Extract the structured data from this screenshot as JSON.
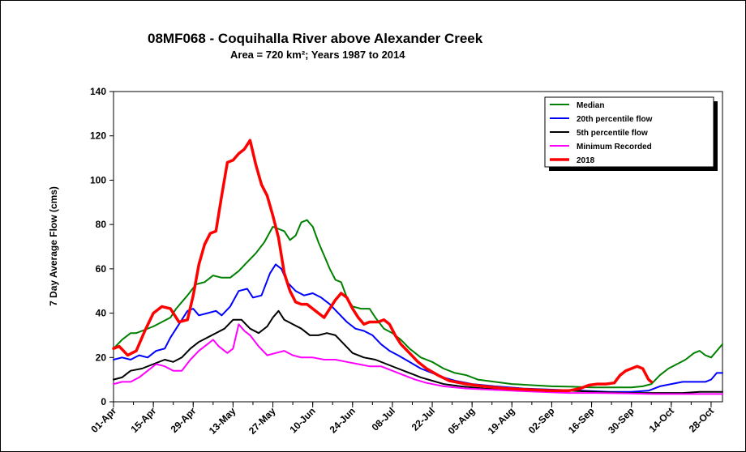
{
  "chart_data": {
    "type": "line",
    "title": "08MF068 - Coquihalla River above Alexander Creek",
    "subtitle": "Area = 720 km²; Years 1987 to 2014",
    "xlabel": "",
    "ylabel": "7 Day Average Flow (cms)",
    "ylim": [
      0,
      140
    ],
    "yticks": [
      0,
      20,
      40,
      60,
      80,
      100,
      120,
      140
    ],
    "xlim": [
      0,
      214
    ],
    "xticks": [
      {
        "day": 0,
        "label": "01-Apr"
      },
      {
        "day": 14,
        "label": "15-Apr"
      },
      {
        "day": 28,
        "label": "29-Apr"
      },
      {
        "day": 42,
        "label": "13-May"
      },
      {
        "day": 56,
        "label": "27-May"
      },
      {
        "day": 70,
        "label": "10-Jun"
      },
      {
        "day": 84,
        "label": "24-Jun"
      },
      {
        "day": 98,
        "label": "08-Jul"
      },
      {
        "day": 112,
        "label": "22-Jul"
      },
      {
        "day": 126,
        "label": "05-Aug"
      },
      {
        "day": 140,
        "label": "19-Aug"
      },
      {
        "day": 154,
        "label": "02-Sep"
      },
      {
        "day": 168,
        "label": "16-Sep"
      },
      {
        "day": 182,
        "label": "30-Sep"
      },
      {
        "day": 196,
        "label": "14-Oct"
      },
      {
        "day": 210,
        "label": "28-Oct"
      }
    ],
    "x_unit": "days since 01-Apr",
    "grid": false,
    "legend_position": "top-right",
    "series": [
      {
        "name": "Median",
        "color": "#008000",
        "width": 2,
        "points": [
          [
            0,
            24
          ],
          [
            3,
            28
          ],
          [
            6,
            31
          ],
          [
            8,
            31
          ],
          [
            10,
            32
          ],
          [
            14,
            34
          ],
          [
            17,
            36
          ],
          [
            20,
            38
          ],
          [
            22,
            42
          ],
          [
            26,
            48
          ],
          [
            29,
            53
          ],
          [
            32,
            54
          ],
          [
            35,
            57
          ],
          [
            38,
            56
          ],
          [
            41,
            56
          ],
          [
            44,
            59
          ],
          [
            47,
            63
          ],
          [
            50,
            67
          ],
          [
            53,
            72
          ],
          [
            56,
            79
          ],
          [
            58,
            78
          ],
          [
            60,
            77
          ],
          [
            62,
            73
          ],
          [
            64,
            75
          ],
          [
            66,
            81
          ],
          [
            68,
            82
          ],
          [
            70,
            79
          ],
          [
            72,
            72
          ],
          [
            74,
            66
          ],
          [
            76,
            60
          ],
          [
            78,
            55
          ],
          [
            80,
            54
          ],
          [
            82,
            47
          ],
          [
            84,
            43
          ],
          [
            87,
            42
          ],
          [
            90,
            42
          ],
          [
            92,
            38
          ],
          [
            95,
            33
          ],
          [
            98,
            31
          ],
          [
            101,
            28
          ],
          [
            104,
            24
          ],
          [
            108,
            20
          ],
          [
            112,
            18
          ],
          [
            116,
            15
          ],
          [
            120,
            13
          ],
          [
            124,
            12
          ],
          [
            128,
            10
          ],
          [
            134,
            9
          ],
          [
            140,
            8
          ],
          [
            147,
            7.5
          ],
          [
            154,
            7
          ],
          [
            161,
            6.8
          ],
          [
            168,
            6.5
          ],
          [
            175,
            6.5
          ],
          [
            182,
            6.5
          ],
          [
            186,
            7
          ],
          [
            189,
            8
          ],
          [
            192,
            12
          ],
          [
            195,
            15
          ],
          [
            198,
            17
          ],
          [
            201,
            19
          ],
          [
            204,
            22
          ],
          [
            206,
            23
          ],
          [
            208,
            21
          ],
          [
            210,
            20
          ],
          [
            212,
            23
          ],
          [
            214,
            26
          ]
        ]
      },
      {
        "name": "20th percentile flow",
        "color": "#0000FF",
        "width": 2,
        "points": [
          [
            0,
            19
          ],
          [
            3,
            20
          ],
          [
            6,
            19
          ],
          [
            9,
            21
          ],
          [
            12,
            20
          ],
          [
            15,
            23
          ],
          [
            18,
            24
          ],
          [
            20,
            29
          ],
          [
            23,
            35
          ],
          [
            26,
            41
          ],
          [
            28,
            42
          ],
          [
            30,
            39
          ],
          [
            33,
            40
          ],
          [
            36,
            41
          ],
          [
            38,
            39
          ],
          [
            41,
            43
          ],
          [
            44,
            50
          ],
          [
            47,
            51
          ],
          [
            49,
            47
          ],
          [
            52,
            48
          ],
          [
            55,
            58
          ],
          [
            57,
            62
          ],
          [
            59,
            60
          ],
          [
            61,
            54
          ],
          [
            64,
            50
          ],
          [
            67,
            48
          ],
          [
            70,
            49
          ],
          [
            73,
            47
          ],
          [
            76,
            44
          ],
          [
            79,
            40
          ],
          [
            82,
            36
          ],
          [
            85,
            33
          ],
          [
            88,
            32
          ],
          [
            91,
            30
          ],
          [
            94,
            26
          ],
          [
            97,
            23
          ],
          [
            100,
            21
          ],
          [
            104,
            18
          ],
          [
            108,
            15
          ],
          [
            112,
            13
          ],
          [
            116,
            11
          ],
          [
            120,
            9.5
          ],
          [
            126,
            8
          ],
          [
            134,
            7
          ],
          [
            144,
            6
          ],
          [
            154,
            5.5
          ],
          [
            164,
            5
          ],
          [
            174,
            4.5
          ],
          [
            182,
            4.5
          ],
          [
            188,
            5
          ],
          [
            192,
            7
          ],
          [
            196,
            8
          ],
          [
            200,
            9
          ],
          [
            204,
            9
          ],
          [
            208,
            9
          ],
          [
            210,
            10
          ],
          [
            212,
            13
          ],
          [
            214,
            13
          ]
        ]
      },
      {
        "name": "5th percentile flow",
        "color": "#000000",
        "width": 2,
        "points": [
          [
            0,
            10
          ],
          [
            3,
            11
          ],
          [
            6,
            14
          ],
          [
            10,
            15
          ],
          [
            14,
            17
          ],
          [
            18,
            19
          ],
          [
            21,
            18
          ],
          [
            24,
            20
          ],
          [
            27,
            24
          ],
          [
            30,
            27
          ],
          [
            33,
            29
          ],
          [
            36,
            31
          ],
          [
            39,
            33
          ],
          [
            42,
            37
          ],
          [
            45,
            37
          ],
          [
            48,
            33
          ],
          [
            51,
            31
          ],
          [
            54,
            34
          ],
          [
            56,
            38
          ],
          [
            58,
            41
          ],
          [
            60,
            37
          ],
          [
            63,
            35
          ],
          [
            66,
            33
          ],
          [
            69,
            30
          ],
          [
            72,
            30
          ],
          [
            75,
            31
          ],
          [
            78,
            30
          ],
          [
            81,
            26
          ],
          [
            84,
            22
          ],
          [
            88,
            20
          ],
          [
            92,
            19
          ],
          [
            96,
            17
          ],
          [
            100,
            15
          ],
          [
            104,
            13
          ],
          [
            108,
            11
          ],
          [
            112,
            9.5
          ],
          [
            116,
            8
          ],
          [
            122,
            7
          ],
          [
            130,
            6
          ],
          [
            140,
            5.5
          ],
          [
            150,
            5
          ],
          [
            160,
            5
          ],
          [
            170,
            4.5
          ],
          [
            180,
            4
          ],
          [
            190,
            4
          ],
          [
            200,
            4
          ],
          [
            206,
            4.5
          ],
          [
            210,
            4.5
          ],
          [
            214,
            4.5
          ]
        ]
      },
      {
        "name": "Minimum Recorded",
        "color": "#FF00FF",
        "width": 2,
        "points": [
          [
            0,
            8
          ],
          [
            3,
            9
          ],
          [
            6,
            9
          ],
          [
            9,
            11
          ],
          [
            12,
            14
          ],
          [
            15,
            17
          ],
          [
            18,
            16
          ],
          [
            21,
            14
          ],
          [
            24,
            14
          ],
          [
            27,
            19
          ],
          [
            30,
            23
          ],
          [
            33,
            26
          ],
          [
            35,
            28
          ],
          [
            37,
            25
          ],
          [
            40,
            22
          ],
          [
            42,
            24
          ],
          [
            44,
            35
          ],
          [
            46,
            32
          ],
          [
            48,
            30
          ],
          [
            51,
            25
          ],
          [
            54,
            21
          ],
          [
            57,
            22
          ],
          [
            60,
            23
          ],
          [
            63,
            21
          ],
          [
            66,
            20
          ],
          [
            70,
            20
          ],
          [
            74,
            19
          ],
          [
            78,
            19
          ],
          [
            82,
            18
          ],
          [
            86,
            17
          ],
          [
            90,
            16
          ],
          [
            94,
            16
          ],
          [
            98,
            14
          ],
          [
            102,
            12
          ],
          [
            106,
            10
          ],
          [
            110,
            8.5
          ],
          [
            116,
            7
          ],
          [
            124,
            6
          ],
          [
            132,
            5.5
          ],
          [
            140,
            5
          ],
          [
            150,
            4.5
          ],
          [
            160,
            4
          ],
          [
            170,
            4
          ],
          [
            180,
            3.8
          ],
          [
            190,
            3.5
          ],
          [
            200,
            3.5
          ],
          [
            210,
            3.5
          ],
          [
            214,
            3.5
          ]
        ]
      },
      {
        "name": "2018",
        "color": "#FF0000",
        "width": 3.5,
        "points": [
          [
            0,
            24
          ],
          [
            2,
            25
          ],
          [
            5,
            21
          ],
          [
            8,
            23
          ],
          [
            11,
            32
          ],
          [
            14,
            40
          ],
          [
            17,
            43
          ],
          [
            20,
            42
          ],
          [
            23,
            36
          ],
          [
            26,
            37
          ],
          [
            28,
            48
          ],
          [
            30,
            62
          ],
          [
            32,
            71
          ],
          [
            34,
            76
          ],
          [
            36,
            77
          ],
          [
            38,
            93
          ],
          [
            40,
            108
          ],
          [
            42,
            109
          ],
          [
            44,
            112
          ],
          [
            46,
            114
          ],
          [
            48,
            118
          ],
          [
            50,
            107
          ],
          [
            52,
            98
          ],
          [
            54,
            93
          ],
          [
            56,
            84
          ],
          [
            58,
            74
          ],
          [
            60,
            58
          ],
          [
            62,
            50
          ],
          [
            64,
            45
          ],
          [
            66,
            44
          ],
          [
            68,
            44
          ],
          [
            70,
            42
          ],
          [
            72,
            40
          ],
          [
            74,
            38
          ],
          [
            76,
            42
          ],
          [
            78,
            46
          ],
          [
            80,
            49
          ],
          [
            82,
            47
          ],
          [
            84,
            42
          ],
          [
            86,
            38
          ],
          [
            88,
            35
          ],
          [
            90,
            36
          ],
          [
            93,
            36
          ],
          [
            95,
            37
          ],
          [
            97,
            35
          ],
          [
            99,
            30
          ],
          [
            101,
            26
          ],
          [
            104,
            22
          ],
          [
            107,
            18
          ],
          [
            110,
            15
          ],
          [
            114,
            12
          ],
          [
            118,
            9.5
          ],
          [
            124,
            8
          ],
          [
            130,
            7
          ],
          [
            138,
            6
          ],
          [
            146,
            5.5
          ],
          [
            154,
            5
          ],
          [
            160,
            5
          ],
          [
            164,
            6
          ],
          [
            167,
            7.5
          ],
          [
            170,
            8
          ],
          [
            173,
            8
          ],
          [
            176,
            8.5
          ],
          [
            178,
            12
          ],
          [
            180,
            14
          ],
          [
            182,
            15
          ],
          [
            184,
            16
          ],
          [
            186,
            15
          ],
          [
            188,
            10
          ],
          [
            189,
            9
          ]
        ]
      }
    ]
  }
}
